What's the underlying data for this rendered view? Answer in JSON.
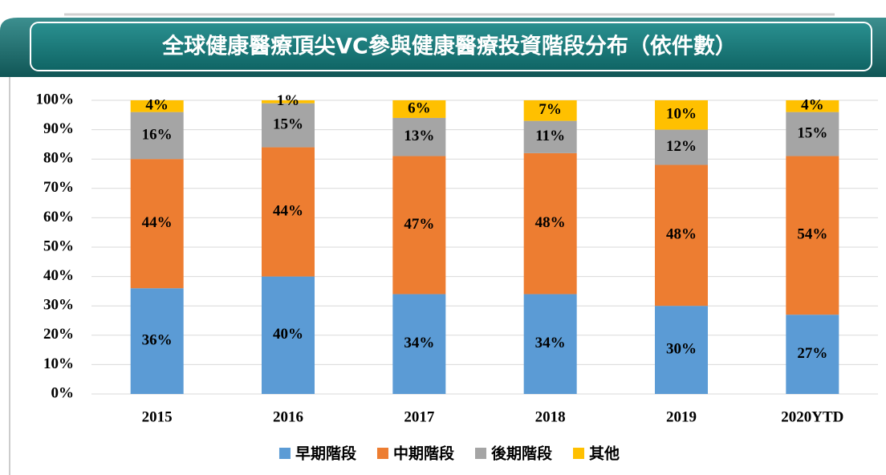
{
  "chart_data": {
    "type": "stacked_bar",
    "title": "全球健康醫療頂尖VC參與健康醫療投資階段分布（依件數）",
    "categories": [
      "2015",
      "2016",
      "2017",
      "2018",
      "2019",
      "2020YTD"
    ],
    "series": [
      {
        "name": "早期階段",
        "color": "#5b9bd5",
        "values": [
          36,
          40,
          34,
          34,
          30,
          27
        ],
        "value_labels": [
          "36%",
          "40%",
          "34%",
          "34%",
          "30%",
          "27%"
        ]
      },
      {
        "name": "中期階段",
        "color": "#ed7d31",
        "values": [
          44,
          44,
          47,
          48,
          48,
          54
        ],
        "value_labels": [
          "44%",
          "44%",
          "47%",
          "48%",
          "48%",
          "54%"
        ]
      },
      {
        "name": "後期階段",
        "color": "#a5a5a5",
        "values": [
          16,
          15,
          13,
          11,
          12,
          15
        ],
        "value_labels": [
          "16%",
          "15%",
          "13%",
          "11%",
          "12%",
          "15%"
        ]
      },
      {
        "name": "其他",
        "color": "#ffc000",
        "values": [
          4,
          1,
          6,
          7,
          10,
          4
        ],
        "value_labels": [
          "4%",
          "1%",
          "6%",
          "7%",
          "10%",
          "4%"
        ]
      }
    ],
    "ylim": [
      0,
      100
    ],
    "yticks": [
      {
        "value": 0,
        "label": "0%"
      },
      {
        "value": 10,
        "label": "10%"
      },
      {
        "value": 20,
        "label": "20%"
      },
      {
        "value": 30,
        "label": "30%"
      },
      {
        "value": 40,
        "label": "40%"
      },
      {
        "value": 50,
        "label": "50%"
      },
      {
        "value": 60,
        "label": "60%"
      },
      {
        "value": 70,
        "label": "70%"
      },
      {
        "value": 80,
        "label": "80%"
      },
      {
        "value": 90,
        "label": "90%"
      },
      {
        "value": 100,
        "label": "100%"
      }
    ],
    "grid": true,
    "legend": "bottom"
  }
}
